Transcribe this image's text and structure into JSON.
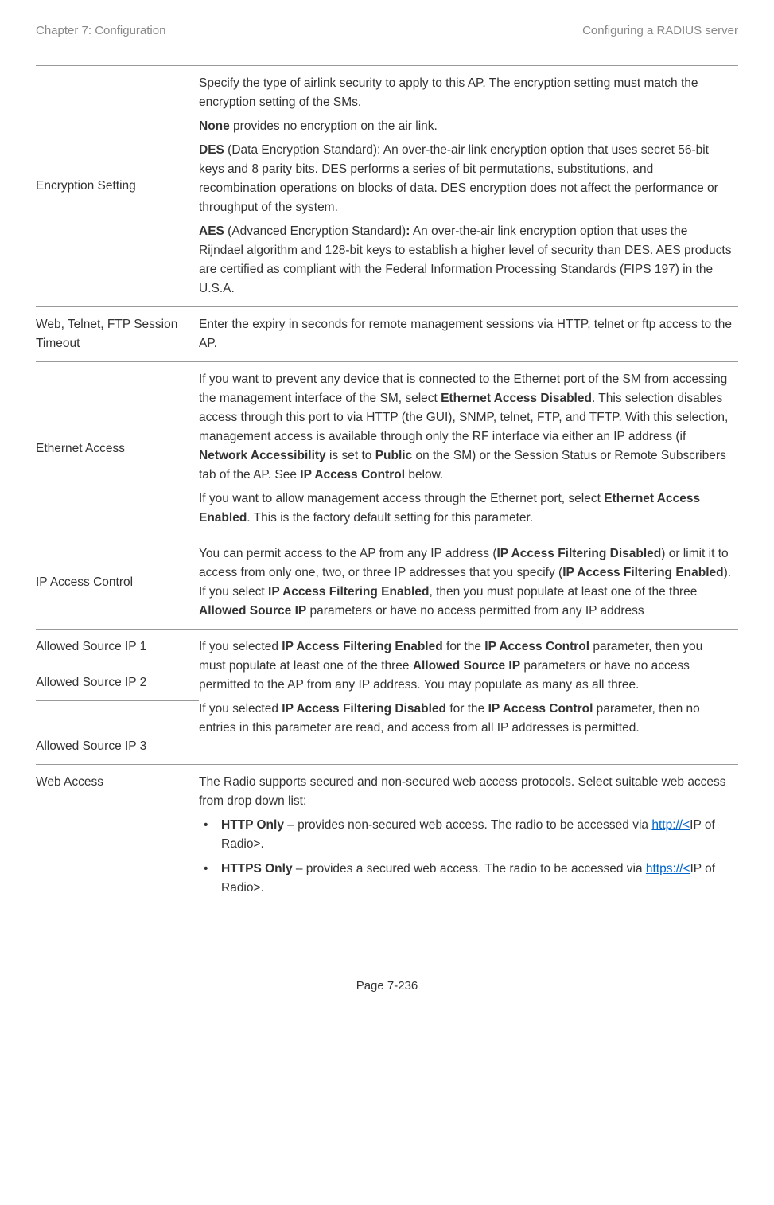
{
  "header": {
    "left": "Chapter 7:  Configuration",
    "right": "Configuring a RADIUS server"
  },
  "rows": {
    "encryption": {
      "label": "Encryption Setting",
      "p1": "Specify the type of airlink security to apply to this AP. The encryption setting must match the encryption setting of the SMs.",
      "p2_bold": "None",
      "p2_rest": " provides no encryption on the air link.",
      "p3_bold": "DES",
      "p3_rest": " (Data Encryption Standard): An over-the-air link encryption option that uses secret 56-bit keys and 8 parity bits. DES performs a series of bit permutations, substitutions, and recombination operations on blocks of data. DES encryption does not affect the performance or throughput of the system.",
      "p4_bold": "AES",
      "p4_mid": " (Advanced Encryption Standard)",
      "p4_colon": ":",
      "p4_rest": " An over-the-air link encryption option that uses the Rijndael algorithm and 128-bit keys to establish a higher level of security than DES. AES products are certified as compliant with the Federal Information Processing Standards (FIPS 197) in the U.S.A."
    },
    "timeout": {
      "label": "Web, Telnet, FTP Session Timeout",
      "text": "Enter the expiry in seconds for remote management sessions via HTTP, telnet or ftp access to the AP."
    },
    "ethernet": {
      "label": "Ethernet Access",
      "p1a": "If you want to prevent any device that is connected to the Ethernet port of the SM from accessing the management interface of the SM, select ",
      "p1b": "Ethernet Access Disabled",
      "p1c": ". This selection disables access through this port to via HTTP (the GUI), SNMP, telnet, FTP, and TFTP. With this selection, management access is available through only the RF interface via either an IP address (if ",
      "p1d": "Network Accessibility",
      "p1e": " is set to ",
      "p1f": "Public",
      "p1g": " on the SM) or the Session Status or Remote Subscribers tab of the AP. See ",
      "p1h": "IP Access Control",
      "p1i": " below.",
      "p2a": "If you want to allow management access through the Ethernet port, select ",
      "p2b": "Ethernet Access Enabled",
      "p2c": ". This is the factory default setting for this parameter."
    },
    "ipaccess": {
      "label": "IP Access Control",
      "a": "You can permit access to the AP from any IP address (",
      "b": "IP Access Filtering Disabled",
      "c": ") or limit it to access from only one, two, or three IP addresses that you specify (",
      "d": "IP Access Filtering Enabled",
      "e": "). If you select ",
      "f": "IP Access Filtering Enabled",
      "g": ", then you must populate at least one of the three ",
      "h": "Allowed Source IP",
      "i": " parameters or have no access permitted from any IP address"
    },
    "allowed": {
      "label1": "Allowed Source IP 1",
      "label2": "Allowed Source IP 2",
      "label3": "Allowed Source IP 3",
      "p1a": "If you selected ",
      "p1b": "IP Access Filtering Enabled",
      "p1c": " for the ",
      "p1d": "IP Access Control",
      "p1e": " parameter, then you must populate at least one of the three ",
      "p1f": "Allowed Source IP",
      "p1g": " parameters or have no access permitted to the AP from any IP address. You may populate as many as all three.",
      "p2a": "If you selected ",
      "p2b": "IP Access Filtering Disabled",
      "p2c": " for the ",
      "p2d": "IP Access Control",
      "p2e": " parameter, then no entries in this parameter are read, and access from all IP addresses is permitted."
    },
    "web": {
      "label": "Web Access",
      "intro": "The Radio supports secured and non-secured web access protocols. Select suitable web access from drop down list:",
      "b1_bold": "HTTP Only",
      "b1_text": " – provides non-secured web access. The radio to be accessed via ",
      "b1_link": "http://<",
      "b1_after": "IP of Radio>.",
      "b2_bold": "HTTPS Only",
      "b2_text": " – provides a secured web access. The radio to be accessed via ",
      "b2_link": "https://<",
      "b2_after": "IP of Radio>."
    }
  },
  "footer": "Page 7-236"
}
